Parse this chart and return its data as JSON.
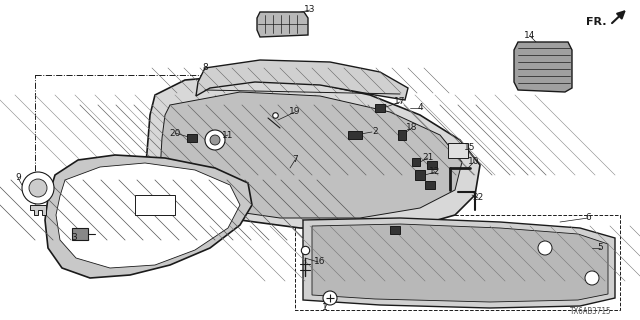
{
  "bg_color": "#ffffff",
  "line_color": "#1a1a1a",
  "label_color": "#1a1a1a",
  "diagram_id": "TX6AB3715",
  "fig_width": 6.4,
  "fig_height": 3.2,
  "dpi": 100
}
